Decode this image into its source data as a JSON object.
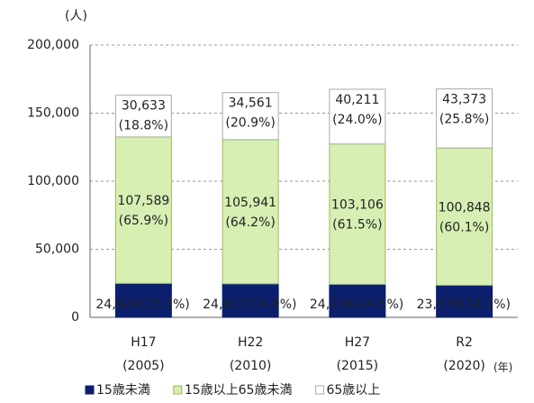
{
  "chart_data": {
    "type": "stacked_bar",
    "y_unit": "(人)",
    "x_unit": "(年)",
    "categories": [
      "H17",
      "H22",
      "H27",
      "R2"
    ],
    "category_years": [
      "(2005)",
      "(2010)",
      "(2015)",
      "(2020)"
    ],
    "series": [
      {
        "name": "15歳未満",
        "color": "#0b1f6e",
        "values": [
          24924,
          24617,
          24236,
          23576
        ],
        "value_labels": [
          "24,924",
          "24,617",
          "24,236",
          "23,576"
        ],
        "shares": [
          15.3,
          14.9,
          14.5,
          14.1
        ],
        "share_labels": [
          "(15.3%)",
          "(14.9%)",
          "(14.5%)",
          "(14.1%)"
        ]
      },
      {
        "name": "15歳以上65歳未満",
        "color": "#d7efb3",
        "values": [
          107589,
          105941,
          103106,
          100848
        ],
        "value_labels": [
          "107,589",
          "105,941",
          "103,106",
          "100,848"
        ],
        "shares": [
          65.9,
          64.2,
          61.5,
          60.1
        ],
        "share_labels": [
          "(65.9%)",
          "(64.2%)",
          "(61.5%)",
          "(60.1%)"
        ]
      },
      {
        "name": "65歳以上",
        "color": "#ffffff",
        "values": [
          30633,
          34561,
          40211,
          43373
        ],
        "value_labels": [
          "30,633",
          "34,561",
          "40,211",
          "43,373"
        ],
        "shares": [
          18.8,
          20.9,
          24.0,
          25.8
        ],
        "share_labels": [
          "(18.8%)",
          "(20.9%)",
          "(24.0%)",
          "(25.8%)"
        ]
      }
    ],
    "ylim": [
      0,
      200000
    ],
    "yticks": [
      0,
      {
        "value": 50000,
        "label": "50,000"
      },
      {
        "value": 100000,
        "label": "100,000"
      },
      {
        "value": 150000,
        "label": "150,000"
      },
      {
        "value": 200000,
        "label": "200,000"
      }
    ],
    "grid": true
  }
}
